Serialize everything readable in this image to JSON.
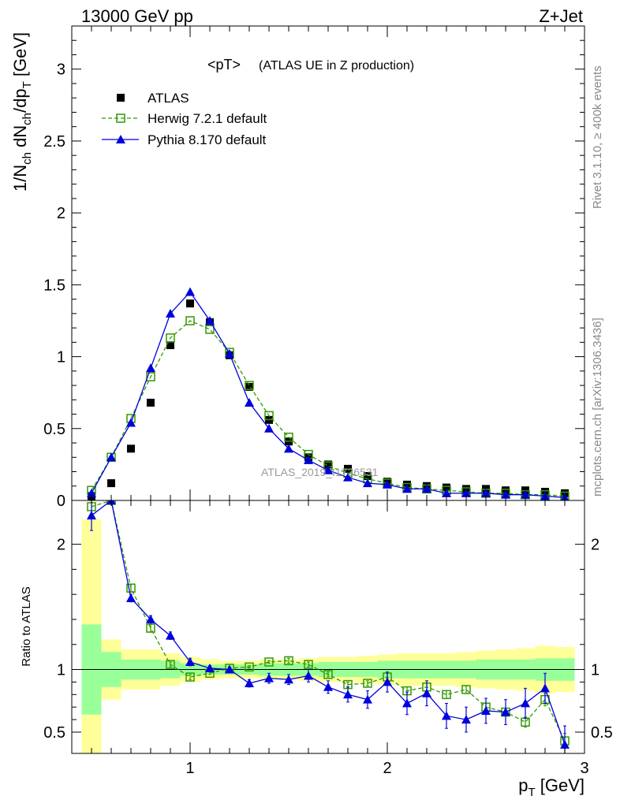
{
  "header": {
    "left_label": "13000 GeV pp",
    "right_label": "Z+Jet"
  },
  "side_labels": {
    "rivet": "Rivet 3.1.10, ≥ 400k events",
    "mcplots": "mcplots.cern.ch [arXiv:1306.3436]"
  },
  "watermark": "ATLAS_2019_I1736531",
  "chart_data": [
    {
      "type": "scatter",
      "panel": "main",
      "title": "<pT> (ATLAS UE in Z production)",
      "title_main": "<pT>",
      "title_sub": "(ATLAS UE in Z production)",
      "ylabel": "1/N_ch dN_ch/dp_T [GeV]",
      "xlim": [
        0.4,
        3.0
      ],
      "ylim": [
        0,
        3.3
      ],
      "y_ticks": [
        0,
        0.5,
        1,
        1.5,
        2,
        2.5,
        3
      ],
      "y_tick_labels": [
        "0",
        "0.5",
        "1",
        "1.5",
        "2",
        "2.5",
        "3"
      ],
      "x": [
        0.5,
        0.6,
        0.7,
        0.8,
        0.9,
        1.0,
        1.1,
        1.2,
        1.3,
        1.4,
        1.5,
        1.6,
        1.7,
        1.8,
        1.9,
        2.0,
        2.1,
        2.2,
        2.3,
        2.4,
        2.5,
        2.6,
        2.7,
        2.8,
        2.9
      ],
      "legend_position": "top-left",
      "series": [
        {
          "name": "ATLAS",
          "marker": "filled-square",
          "color": "#000000",
          "values": [
            0.03,
            0.12,
            0.36,
            0.68,
            1.08,
            1.37,
            1.24,
            1.01,
            0.79,
            0.56,
            0.41,
            0.3,
            0.25,
            0.22,
            0.17,
            0.13,
            0.11,
            0.1,
            0.09,
            0.08,
            0.08,
            0.07,
            0.07,
            0.06,
            0.05
          ]
        },
        {
          "name": "Herwig 7.2.1 default",
          "marker": "open-square",
          "line": "dashed",
          "color": "#339900",
          "values": [
            0.07,
            0.3,
            0.57,
            0.86,
            1.13,
            1.25,
            1.19,
            1.03,
            0.8,
            0.59,
            0.44,
            0.32,
            0.24,
            0.19,
            0.15,
            0.12,
            0.09,
            0.08,
            0.07,
            0.06,
            0.05,
            0.05,
            0.04,
            0.04,
            0.03
          ]
        },
        {
          "name": "Pythia 8.170 default",
          "marker": "filled-triangle",
          "line": "solid",
          "color": "#0000dd",
          "values": [
            0.05,
            0.3,
            0.54,
            0.92,
            1.3,
            1.45,
            1.25,
            1.02,
            0.68,
            0.5,
            0.36,
            0.28,
            0.21,
            0.16,
            0.12,
            0.11,
            0.08,
            0.08,
            0.05,
            0.05,
            0.05,
            0.04,
            0.04,
            0.03,
            0.02
          ]
        }
      ]
    },
    {
      "type": "line",
      "panel": "ratio",
      "ylabel": "Ratio to ATLAS",
      "xlabel": "p_T [GeV]",
      "xlim": [
        0.4,
        3.0
      ],
      "ylim": [
        0.33,
        2.35
      ],
      "x_ticks": [
        1,
        2,
        3
      ],
      "x_tick_labels": [
        "1",
        "2",
        "3"
      ],
      "y_ticks": [
        0.5,
        1,
        2
      ],
      "y_tick_labels": [
        "0.5",
        "1",
        "2"
      ],
      "reference_line": 1,
      "x": [
        0.5,
        0.6,
        0.7,
        0.8,
        0.9,
        1.0,
        1.1,
        1.2,
        1.3,
        1.4,
        1.5,
        1.6,
        1.7,
        1.8,
        1.9,
        2.0,
        2.1,
        2.2,
        2.3,
        2.4,
        2.5,
        2.6,
        2.7,
        2.8,
        2.9
      ],
      "uncertainty_bands": {
        "green_color": "#99ff99",
        "yellow_color": "#ffff99",
        "green": [
          0.36,
          0.14,
          0.08,
          0.08,
          0.07,
          0.05,
          0.04,
          0.04,
          0.04,
          0.05,
          0.05,
          0.05,
          0.06,
          0.06,
          0.06,
          0.07,
          0.07,
          0.07,
          0.07,
          0.07,
          0.08,
          0.08,
          0.08,
          0.09,
          0.09
        ],
        "yellow": [
          1.2,
          0.24,
          0.16,
          0.16,
          0.13,
          0.1,
          0.08,
          0.07,
          0.07,
          0.08,
          0.08,
          0.09,
          0.1,
          0.1,
          0.11,
          0.12,
          0.13,
          0.13,
          0.13,
          0.14,
          0.15,
          0.16,
          0.17,
          0.19,
          0.18
        ]
      },
      "series": [
        {
          "name": "Herwig 7.2.1 default",
          "marker": "open-square",
          "line": "dashed",
          "color": "#339900",
          "values": [
            2.3,
            2.35,
            1.65,
            1.33,
            1.04,
            0.94,
            0.97,
            1.01,
            1.02,
            1.06,
            1.07,
            1.04,
            0.96,
            0.88,
            0.89,
            0.94,
            0.83,
            0.86,
            0.8,
            0.84,
            0.7,
            0.66,
            0.58,
            0.76,
            0.43
          ],
          "errors": [
            0.0,
            0.0,
            0.03,
            0.03,
            0.02,
            0.02,
            0.01,
            0.01,
            0.01,
            0.01,
            0.02,
            0.02,
            0.02,
            0.02,
            0.02,
            0.03,
            0.03,
            0.03,
            0.03,
            0.03,
            0.03,
            0.03,
            0.04,
            0.05,
            0.06
          ]
        },
        {
          "name": "Pythia 8.170 default",
          "marker": "filled-triangle",
          "line": "solid",
          "color": "#0000dd",
          "values": [
            2.23,
            2.35,
            1.57,
            1.4,
            1.27,
            1.06,
            1.01,
            1.0,
            0.89,
            0.93,
            0.92,
            0.95,
            0.86,
            0.8,
            0.76,
            0.9,
            0.73,
            0.81,
            0.63,
            0.6,
            0.67,
            0.66,
            0.73,
            0.85,
            0.4
          ],
          "errors": [
            0.12,
            0.0,
            0.03,
            0.03,
            0.03,
            0.03,
            0.02,
            0.02,
            0.03,
            0.04,
            0.04,
            0.05,
            0.05,
            0.06,
            0.07,
            0.08,
            0.09,
            0.1,
            0.1,
            0.1,
            0.1,
            0.1,
            0.12,
            0.12,
            0.15
          ]
        }
      ]
    }
  ]
}
